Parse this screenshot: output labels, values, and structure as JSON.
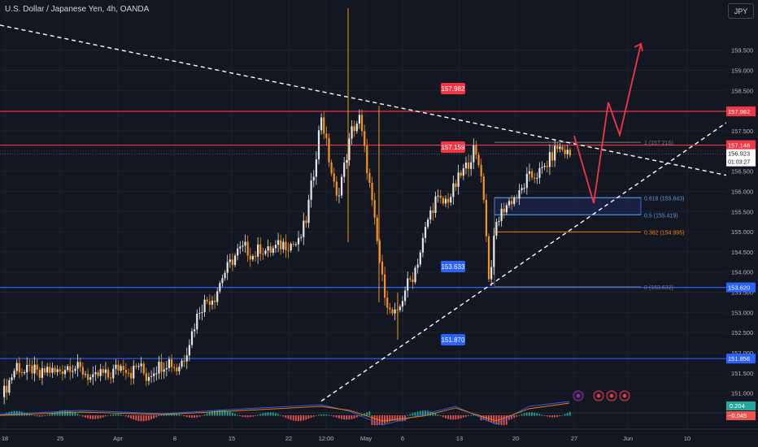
{
  "header": {
    "title": "U.S. Dollar / Japanese Yen, 4h, OANDA",
    "currency_button": "JPY"
  },
  "colors": {
    "up": "#e6e6e6",
    "down": "#f7931a",
    "support": "#2962ff",
    "resistance": "#f23645",
    "path": "#f23645",
    "trend": "#ffffff",
    "zone": "#1e2a5a",
    "macd_pos": "#26a69a",
    "macd_neg": "#ef5350"
  },
  "chart_data": {
    "type": "candlestick",
    "title": "U.S. Dollar / Japanese Yen, 4h, OANDA",
    "ylim": [
      150.55,
      160.3
    ],
    "y_ticks": [
      "151.000",
      "151.500",
      "152.000",
      "152.500",
      "153.000",
      "153.500",
      "154.000",
      "154.500",
      "155.000",
      "155.500",
      "156.000",
      "156.500",
      "157.000",
      "157.500",
      "158.000",
      "158.500",
      "159.000",
      "159.500"
    ],
    "x_ticks": [
      "18",
      "25",
      "Apr",
      "8",
      "15",
      "22",
      "12:00",
      "May",
      "6",
      "13",
      "20",
      "27",
      "Jun",
      "10"
    ],
    "close_series": [
      [
        0,
        150.9
      ],
      [
        3,
        151.3
      ],
      [
        6,
        151.7
      ],
      [
        9,
        151.5
      ],
      [
        12,
        151.6
      ],
      [
        15,
        151.4
      ],
      [
        18,
        151.6
      ],
      [
        21,
        151.5
      ],
      [
        24,
        151.6
      ],
      [
        27,
        151.7
      ],
      [
        30,
        151.6
      ],
      [
        33,
        151.5
      ],
      [
        36,
        151.3
      ],
      [
        39,
        151.5
      ],
      [
        42,
        151.4
      ],
      [
        45,
        151.6
      ],
      [
        48,
        151.7
      ],
      [
        51,
        151.5
      ],
      [
        54,
        151.7
      ],
      [
        57,
        151.4
      ],
      [
        60,
        151.6
      ],
      [
        63,
        151.7
      ],
      [
        66,
        151.8
      ],
      [
        69,
        151.6
      ],
      [
        72,
        151.9
      ],
      [
        75,
        152.5
      ],
      [
        78,
        153.1
      ],
      [
        81,
        153.3
      ],
      [
        84,
        153.4
      ],
      [
        87,
        153.9
      ],
      [
        90,
        154.2
      ],
      [
        93,
        154.5
      ],
      [
        96,
        154.6
      ],
      [
        99,
        154.4
      ],
      [
        102,
        154.6
      ],
      [
        105,
        154.5
      ],
      [
        108,
        154.6
      ],
      [
        111,
        154.7
      ],
      [
        114,
        154.7
      ],
      [
        117,
        154.7
      ],
      [
        120,
        155.3
      ],
      [
        123,
        156.5
      ],
      [
        126,
        157.9
      ],
      [
        129,
        156.8
      ],
      [
        132,
        155.8
      ],
      [
        135,
        156.6
      ],
      [
        138,
        157.5
      ],
      [
        141,
        157.8
      ],
      [
        144,
        156.6
      ],
      [
        147,
        155.2
      ],
      [
        150,
        153.8
      ],
      [
        153,
        153.0
      ],
      [
        156,
        152.9
      ],
      [
        159,
        153.6
      ],
      [
        162,
        153.9
      ],
      [
        165,
        154.5
      ],
      [
        168,
        155.3
      ],
      [
        171,
        155.8
      ],
      [
        174,
        155.7
      ],
      [
        177,
        155.9
      ],
      [
        180,
        156.3
      ],
      [
        183,
        156.6
      ],
      [
        186,
        157.0
      ],
      [
        189,
        156.5
      ],
      [
        191,
        155.0
      ],
      [
        192,
        153.8
      ],
      [
        195,
        155.2
      ],
      [
        198,
        155.6
      ],
      [
        201,
        155.8
      ],
      [
        204,
        155.9
      ],
      [
        207,
        156.3
      ],
      [
        210,
        156.4
      ],
      [
        213,
        156.5
      ],
      [
        216,
        156.8
      ],
      [
        219,
        157.1
      ],
      [
        222,
        157.0
      ],
      [
        224,
        156.9
      ]
    ],
    "price_lines": [
      {
        "label": "157.982",
        "value": 157.982,
        "color": "resistance"
      },
      {
        "label": "157.146",
        "value": 157.146,
        "color": "resistance"
      },
      {
        "label": "153.620",
        "value": 153.62,
        "color": "support"
      },
      {
        "label": "151.856",
        "value": 151.856,
        "color": "support"
      }
    ],
    "bubble_labels": [
      "157.982",
      "157.159",
      "153.633",
      "151.870"
    ],
    "fib_levels": [
      {
        "label": "1 (157.216)",
        "value": 157.216
      },
      {
        "label": "0.618 (155.843)",
        "value": 155.843
      },
      {
        "label": "0.5 (155.419)",
        "value": 155.419
      },
      {
        "label": "0.382 (154.995)",
        "value": 154.995
      },
      {
        "label": "0 (153.632)",
        "value": 153.632
      }
    ],
    "current_price": "156.923",
    "countdown": "01:03:27",
    "projected_path": [
      [
        224,
        157.0
      ],
      [
        232,
        155.6
      ],
      [
        238,
        157.9
      ],
      [
        243,
        157.0
      ],
      [
        249,
        159.4
      ]
    ],
    "macd": {
      "value_pos": "0.204",
      "value_neg": "−0.045"
    }
  }
}
